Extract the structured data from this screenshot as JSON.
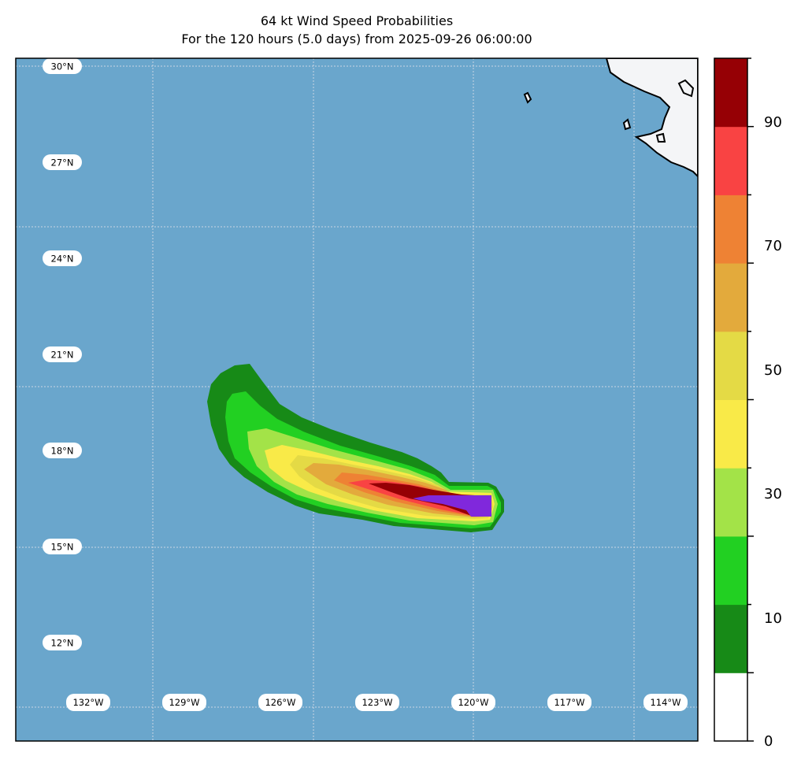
{
  "title_line1": "64 kt Wind Speed Probabilities",
  "title_line2": "For the 120 hours (5.0 days) from 2025-09-26 06:00:00",
  "map": {
    "ocean_color": "#6aa6cc",
    "land_color": "#f4f5f7",
    "lat_labels": [
      "30°N",
      "27°N",
      "24°N",
      "21°N",
      "18°N",
      "15°N",
      "12°N"
    ],
    "lon_labels": [
      "132°W",
      "129°W",
      "126°W",
      "123°W",
      "120°W",
      "117°W",
      "114°W"
    ]
  },
  "colorbar": {
    "bounds": [
      0,
      10,
      20,
      30,
      40,
      50,
      60,
      70,
      80,
      90,
      100
    ],
    "colors": [
      "#ffffff",
      "#178a17",
      "#22d022",
      "#a3e348",
      "#f9ea48",
      "#e4da45",
      "#e3aa3c",
      "#ee8234",
      "#f94343",
      "#960005",
      "#8028dc"
    ],
    "tick_labels": [
      "0",
      "10",
      "30",
      "50",
      "70",
      "90"
    ]
  }
}
